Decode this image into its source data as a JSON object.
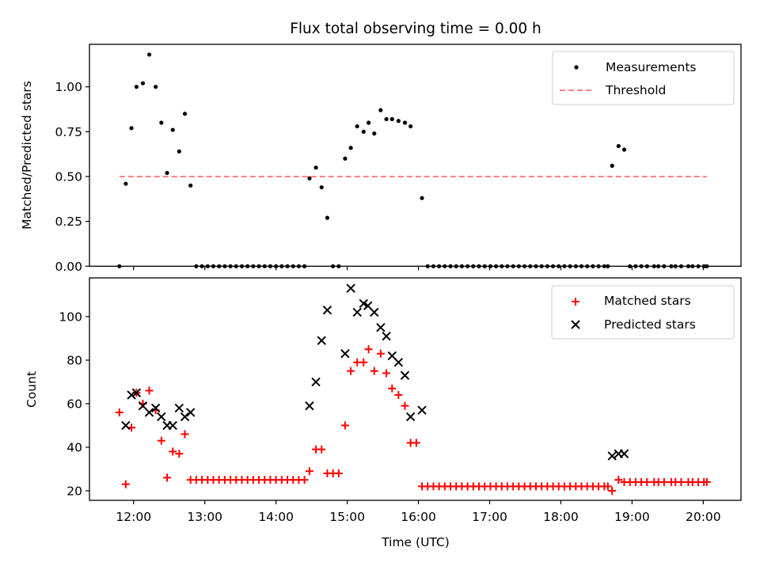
{
  "chart_data": [
    {
      "type": "scatter",
      "panel": "top",
      "title": "Flux total observing time = 0.00 h",
      "xlabel": "",
      "ylabel": "Matched/Predicted stars",
      "xlim": [
        11.38,
        20.53
      ],
      "ylim": [
        0,
        1.237
      ],
      "yticks": [
        0.0,
        0.25,
        0.5,
        0.75,
        1.0
      ],
      "ytick_labels": [
        "0.00",
        "0.25",
        "0.50",
        "0.75",
        "1.00"
      ],
      "xticks": [
        12,
        13,
        14,
        15,
        16,
        17,
        18,
        19,
        20
      ],
      "xtick_labels": [],
      "grid": false,
      "legend": {
        "placement": "top-right",
        "entries": [
          "Measurements",
          "Threshold"
        ]
      },
      "series": [
        {
          "name": "Measurements",
          "kind": "dots",
          "color": "#000000",
          "x": [
            11.8,
            11.89,
            11.97,
            12.04,
            12.13,
            12.22,
            12.31,
            12.39,
            12.47,
            12.55,
            12.64,
            12.72,
            12.8,
            12.88,
            12.96,
            13.04,
            13.12,
            13.2,
            13.28,
            13.36,
            13.44,
            13.52,
            13.6,
            13.68,
            13.76,
            13.84,
            13.92,
            14.0,
            14.08,
            14.16,
            14.24,
            14.32,
            14.4,
            14.47,
            14.56,
            14.64,
            14.72,
            14.8,
            14.88,
            14.97,
            15.05,
            15.14,
            15.23,
            15.3,
            15.38,
            15.47,
            15.55,
            15.63,
            15.72,
            15.81,
            15.89,
            16.05,
            16.13,
            16.21,
            16.29,
            16.37,
            16.45,
            16.53,
            16.61,
            16.69,
            16.77,
            16.85,
            16.93,
            17.01,
            17.09,
            17.17,
            17.25,
            17.33,
            17.41,
            17.49,
            17.57,
            17.65,
            17.73,
            17.81,
            17.89,
            17.97,
            18.05,
            18.13,
            18.21,
            18.29,
            18.37,
            18.45,
            18.53,
            18.61,
            18.66,
            18.72,
            18.81,
            18.89,
            18.97,
            19.05,
            19.13,
            19.21,
            19.31,
            19.37,
            19.45,
            19.55,
            19.61,
            19.69,
            19.79,
            19.85,
            19.93,
            20.01,
            20.05
          ],
          "y": [
            0.0,
            0.46,
            0.77,
            1.0,
            1.02,
            1.18,
            1.0,
            0.8,
            0.52,
            0.76,
            0.64,
            0.85,
            0.45,
            0,
            0,
            0,
            0,
            0,
            0,
            0,
            0,
            0,
            0,
            0,
            0,
            0,
            0,
            0,
            0,
            0,
            0,
            0,
            0,
            0.49,
            0.55,
            0.44,
            0.27,
            0,
            0,
            0.6,
            0.66,
            0.78,
            0.75,
            0.8,
            0.74,
            0.87,
            0.82,
            0.82,
            0.81,
            0.8,
            0.78,
            0.38,
            0,
            0,
            0,
            0,
            0,
            0,
            0,
            0,
            0,
            0,
            0,
            0,
            0,
            0,
            0,
            0,
            0,
            0,
            0,
            0,
            0,
            0,
            0,
            0,
            0,
            0,
            0,
            0,
            0,
            0,
            0,
            0,
            0,
            0.56,
            0.67,
            0.65,
            0,
            0,
            0,
            0,
            0,
            0,
            0,
            0,
            0,
            0,
            0,
            0,
            0,
            0,
            0
          ]
        },
        {
          "name": "Threshold",
          "kind": "dashed-line",
          "color": "#ff8080",
          "x": [
            11.8,
            20.05
          ],
          "y": [
            0.5,
            0.5
          ]
        }
      ]
    },
    {
      "type": "scatter",
      "panel": "bottom",
      "title": "",
      "xlabel": "Time (UTC)",
      "ylabel": "Count",
      "xlim": [
        11.38,
        20.53
      ],
      "ylim": [
        15.6,
        117.8
      ],
      "yticks": [
        20,
        40,
        60,
        80,
        100
      ],
      "ytick_labels": [
        "20",
        "40",
        "60",
        "80",
        "100"
      ],
      "xticks": [
        12,
        13,
        14,
        15,
        16,
        17,
        18,
        19,
        20
      ],
      "xtick_labels": [
        "12:00",
        "13:00",
        "14:00",
        "15:00",
        "16:00",
        "17:00",
        "18:00",
        "19:00",
        "20:00"
      ],
      "grid": false,
      "legend": {
        "placement": "top-right",
        "entries": [
          "Matched stars",
          "Predicted stars"
        ]
      },
      "series": [
        {
          "name": "Matched stars",
          "marker": "plus",
          "color": "#ff0000",
          "x": [
            11.8,
            11.89,
            11.97,
            12.04,
            12.13,
            12.22,
            12.31,
            12.39,
            12.47,
            12.55,
            12.64,
            12.72,
            12.8,
            12.88,
            12.96,
            13.04,
            13.12,
            13.2,
            13.28,
            13.36,
            13.44,
            13.52,
            13.6,
            13.68,
            13.76,
            13.84,
            13.92,
            14.0,
            14.08,
            14.16,
            14.24,
            14.32,
            14.4,
            14.47,
            14.56,
            14.64,
            14.72,
            14.8,
            14.88,
            14.97,
            15.05,
            15.14,
            15.23,
            15.3,
            15.38,
            15.47,
            15.55,
            15.63,
            15.72,
            15.81,
            15.89,
            15.97,
            16.05,
            16.13,
            16.21,
            16.29,
            16.37,
            16.45,
            16.53,
            16.61,
            16.69,
            16.77,
            16.85,
            16.93,
            17.01,
            17.09,
            17.17,
            17.25,
            17.33,
            17.41,
            17.49,
            17.57,
            17.65,
            17.73,
            17.81,
            17.89,
            17.97,
            18.05,
            18.13,
            18.21,
            18.29,
            18.37,
            18.45,
            18.53,
            18.61,
            18.66,
            18.72,
            18.81,
            18.89,
            18.97,
            19.05,
            19.13,
            19.21,
            19.31,
            19.37,
            19.45,
            19.55,
            19.61,
            19.69,
            19.79,
            19.85,
            19.93,
            20.01,
            20.05
          ],
          "y": [
            56,
            23,
            49,
            65,
            60,
            66,
            57,
            43,
            26,
            38,
            37,
            46,
            25,
            25,
            25,
            25,
            25,
            25,
            25,
            25,
            25,
            25,
            25,
            25,
            25,
            25,
            25,
            25,
            25,
            25,
            25,
            25,
            25,
            29,
            39,
            39,
            28,
            28,
            28,
            50,
            75,
            79,
            79,
            85,
            75,
            83,
            74,
            67,
            64,
            59,
            42,
            42,
            22,
            22,
            22,
            22,
            22,
            22,
            22,
            22,
            22,
            22,
            22,
            22,
            22,
            22,
            22,
            22,
            22,
            22,
            22,
            22,
            22,
            22,
            22,
            22,
            22,
            22,
            22,
            22,
            22,
            22,
            22,
            22,
            22,
            22,
            20,
            25,
            24,
            24,
            24,
            24,
            24,
            24,
            24,
            24,
            24,
            24,
            24,
            24,
            24,
            24,
            24,
            24
          ]
        },
        {
          "name": "Predicted stars",
          "marker": "x",
          "color": "#000000",
          "x": [
            11.89,
            11.97,
            12.04,
            12.13,
            12.22,
            12.31,
            12.39,
            12.47,
            12.55,
            12.64,
            12.72,
            12.8,
            14.47,
            14.56,
            14.64,
            14.72,
            14.97,
            15.05,
            15.14,
            15.23,
            15.29,
            15.38,
            15.47,
            15.55,
            15.63,
            15.72,
            15.81,
            15.89,
            16.05,
            18.72,
            18.81,
            18.89
          ],
          "y": [
            50,
            64,
            65,
            59,
            56,
            58,
            54,
            50,
            50,
            58,
            54,
            56,
            59,
            70,
            89,
            103,
            83,
            113,
            102,
            106,
            105,
            102,
            95,
            91,
            82,
            79,
            73,
            54,
            57,
            36,
            37,
            37
          ]
        }
      ]
    }
  ]
}
